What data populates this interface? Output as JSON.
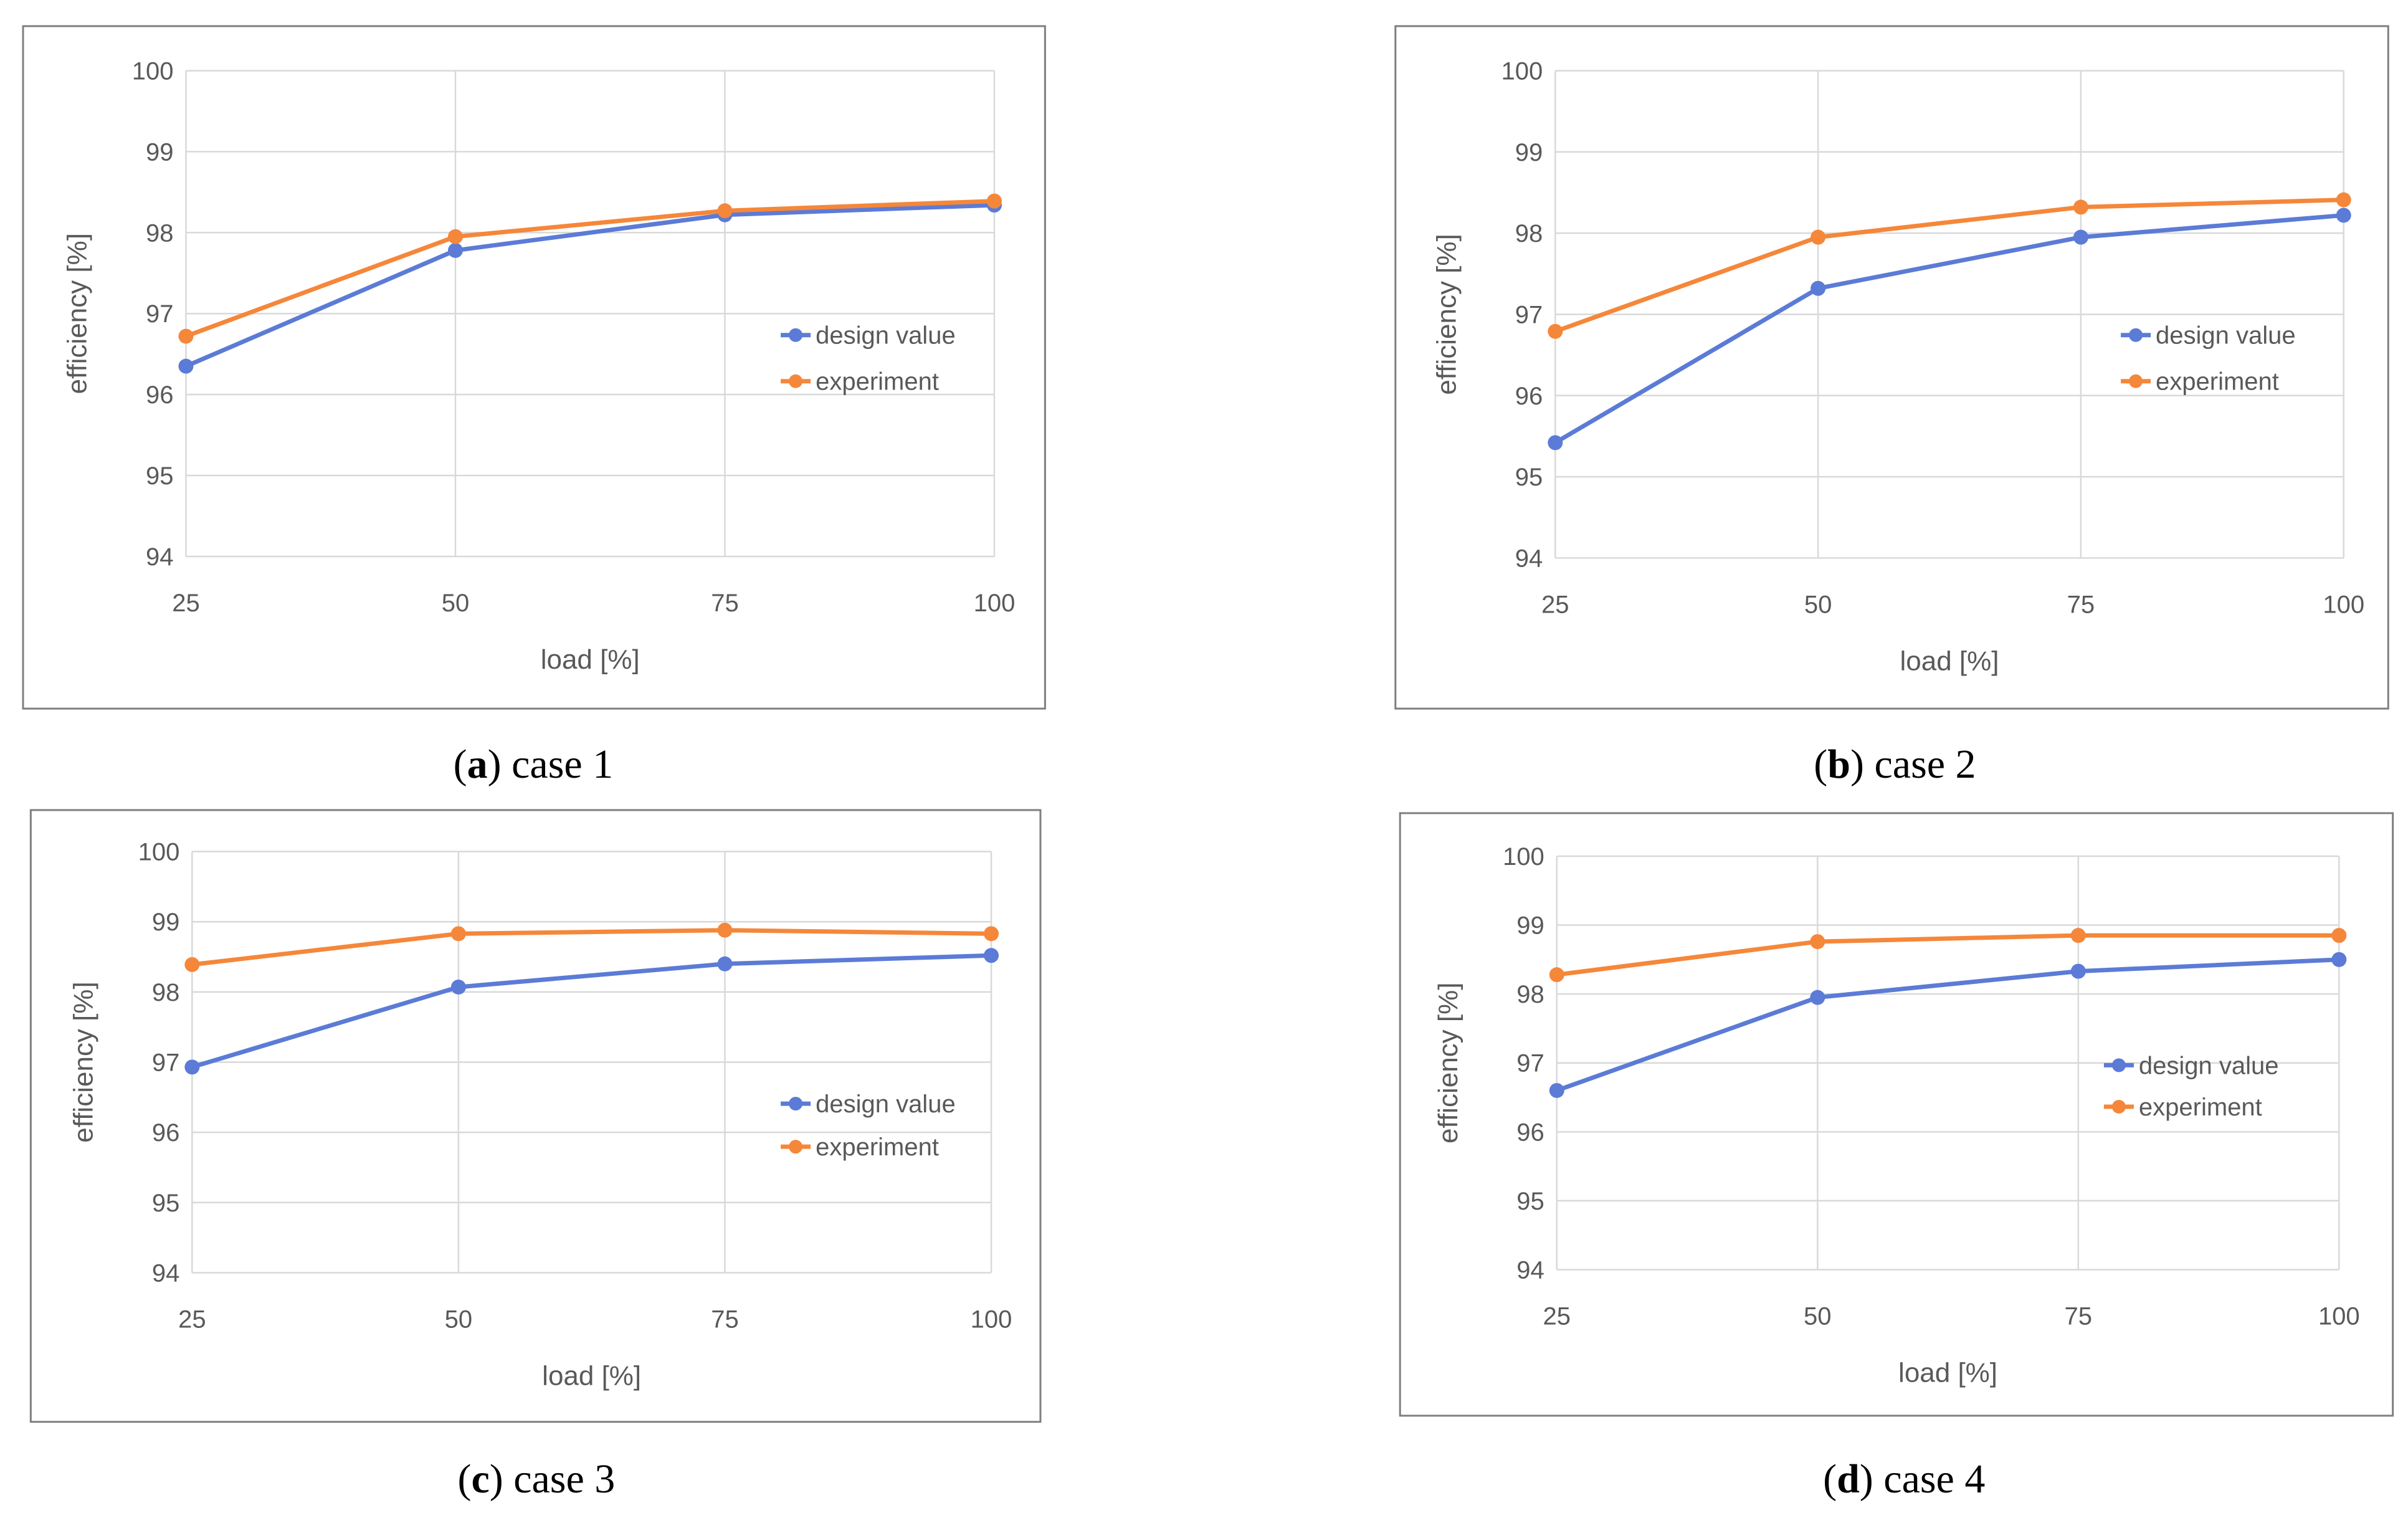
{
  "colors": {
    "design": "#5b7bd6",
    "experiment": "#f5873a",
    "grid": "#d9d9d9",
    "frame": "#7f7f7f",
    "text": "#595959"
  },
  "chart_data": [
    {
      "type": "line",
      "caption_letter": "a",
      "caption_text": "case 1",
      "categories": [
        "25",
        "50",
        "75",
        "100"
      ],
      "series": [
        {
          "name": "design value",
          "values": [
            96.35,
            97.78,
            98.22,
            98.34
          ]
        },
        {
          "name": "experiment",
          "values": [
            96.72,
            97.95,
            98.27,
            98.39
          ]
        }
      ],
      "xlabel": "load [%]",
      "ylabel": "efficiency [%]",
      "ylim": [
        94,
        100
      ],
      "yticks": [
        "94",
        "95",
        "96",
        "97",
        "98",
        "99",
        "100"
      ],
      "grid": true,
      "legend": "right-middle"
    },
    {
      "type": "line",
      "caption_letter": "b",
      "caption_text": "case 2",
      "categories": [
        "25",
        "50",
        "75",
        "100"
      ],
      "series": [
        {
          "name": "design value",
          "values": [
            95.42,
            97.32,
            97.95,
            98.22
          ]
        },
        {
          "name": "experiment",
          "values": [
            96.79,
            97.95,
            98.32,
            98.41
          ]
        }
      ],
      "xlabel": "load [%]",
      "ylabel": "efficiency [%]",
      "ylim": [
        94,
        100
      ],
      "yticks": [
        "94",
        "95",
        "96",
        "97",
        "98",
        "99",
        "100"
      ],
      "grid": true,
      "legend": "right-middle"
    },
    {
      "type": "line",
      "caption_letter": "c",
      "caption_text": "case 3",
      "categories": [
        "25",
        "50",
        "75",
        "100"
      ],
      "series": [
        {
          "name": "design value",
          "values": [
            96.93,
            98.07,
            98.4,
            98.52
          ]
        },
        {
          "name": "experiment",
          "values": [
            98.39,
            98.83,
            98.88,
            98.83
          ]
        }
      ],
      "xlabel": "load [%]",
      "ylabel": "efficiency [%]",
      "ylim": [
        94,
        100
      ],
      "yticks": [
        "94",
        "95",
        "96",
        "97",
        "98",
        "99",
        "100"
      ],
      "grid": true,
      "legend": "right-middle"
    },
    {
      "type": "line",
      "caption_letter": "d",
      "caption_text": "case 4",
      "categories": [
        "25",
        "50",
        "75",
        "100"
      ],
      "series": [
        {
          "name": "design value",
          "values": [
            96.6,
            97.95,
            98.33,
            98.5
          ]
        },
        {
          "name": "experiment",
          "values": [
            98.28,
            98.76,
            98.85,
            98.85
          ]
        }
      ],
      "xlabel": "load [%]",
      "ylabel": "efficiency [%]",
      "ylim": [
        94,
        100
      ],
      "yticks": [
        "94",
        "95",
        "96",
        "97",
        "98",
        "99",
        "100"
      ],
      "grid": true,
      "legend": "right-middle"
    }
  ]
}
